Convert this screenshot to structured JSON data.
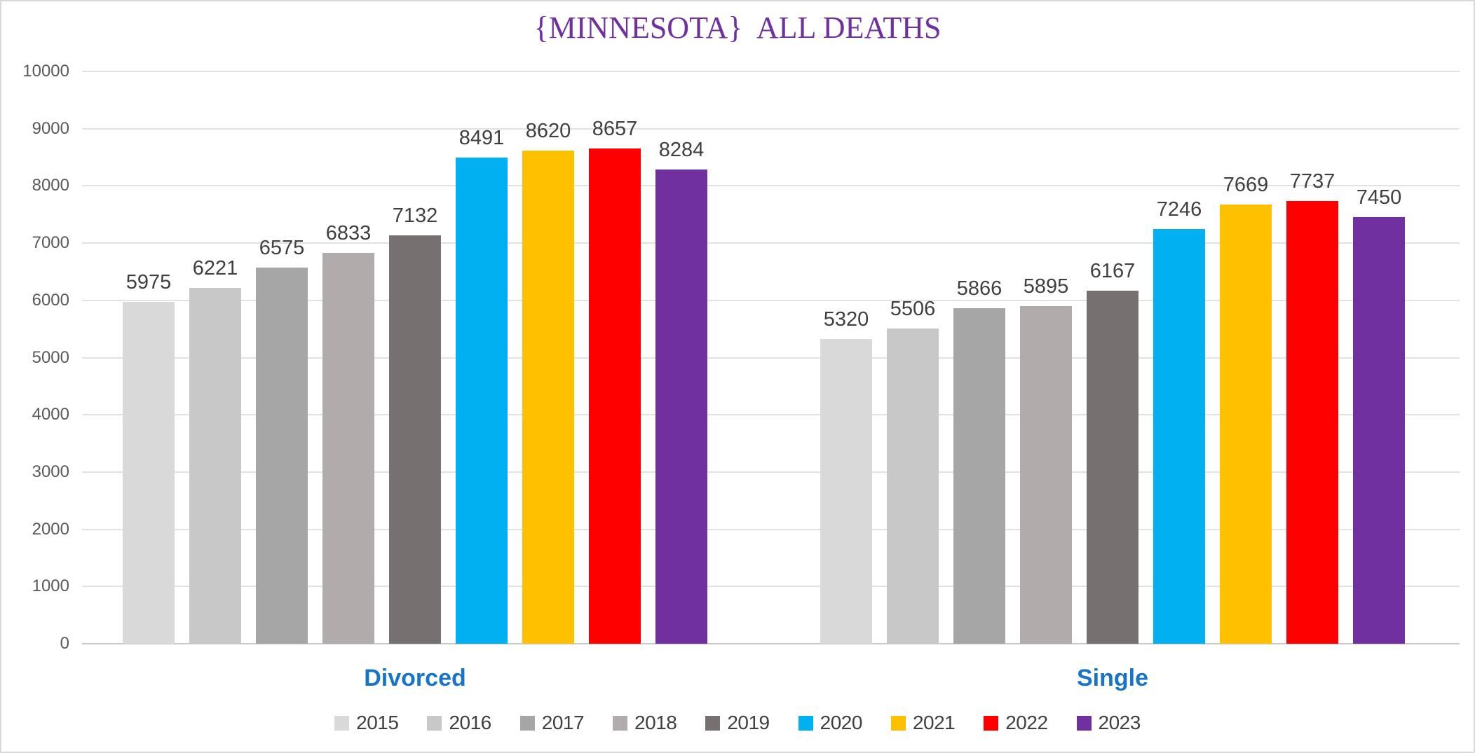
{
  "chart_data": {
    "type": "bar",
    "title": "{MINNESOTA}  ALL DEATHS",
    "categories": [
      "Divorced",
      "Single"
    ],
    "series": [
      {
        "name": "2015",
        "color": "#D9D9D9",
        "values": [
          5975,
          5320
        ]
      },
      {
        "name": "2016",
        "color": "#C8C8C8",
        "values": [
          6221,
          5506
        ]
      },
      {
        "name": "2017",
        "color": "#A6A6A6",
        "values": [
          6575,
          5866
        ]
      },
      {
        "name": "2018",
        "color": "#B1ACAB",
        "values": [
          6833,
          5895
        ]
      },
      {
        "name": "2019",
        "color": "#767070",
        "values": [
          7132,
          6167
        ]
      },
      {
        "name": "2020",
        "color": "#00B0F0",
        "values": [
          8491,
          7246
        ]
      },
      {
        "name": "2021",
        "color": "#FFC000",
        "values": [
          8620,
          7669
        ]
      },
      {
        "name": "2022",
        "color": "#FF0000",
        "values": [
          8657,
          7737
        ]
      },
      {
        "name": "2023",
        "color": "#7030A0",
        "values": [
          8284,
          7450
        ]
      }
    ],
    "ylim": [
      0,
      10000
    ],
    "ytick_step": 1000,
    "yticks": [
      "0",
      "1000",
      "2000",
      "3000",
      "4000",
      "5000",
      "6000",
      "7000",
      "8000",
      "9000",
      "10000"
    ],
    "grid": "horizontal",
    "legend_position": "bottom",
    "show_data_labels": true
  },
  "colors": {
    "title": "#7030A0",
    "category_label": "#1874C8",
    "data_label": "#404040",
    "axis_tick": "#595959",
    "gridline": "#E2E2E2",
    "frame_border": "#D9D9D9"
  }
}
